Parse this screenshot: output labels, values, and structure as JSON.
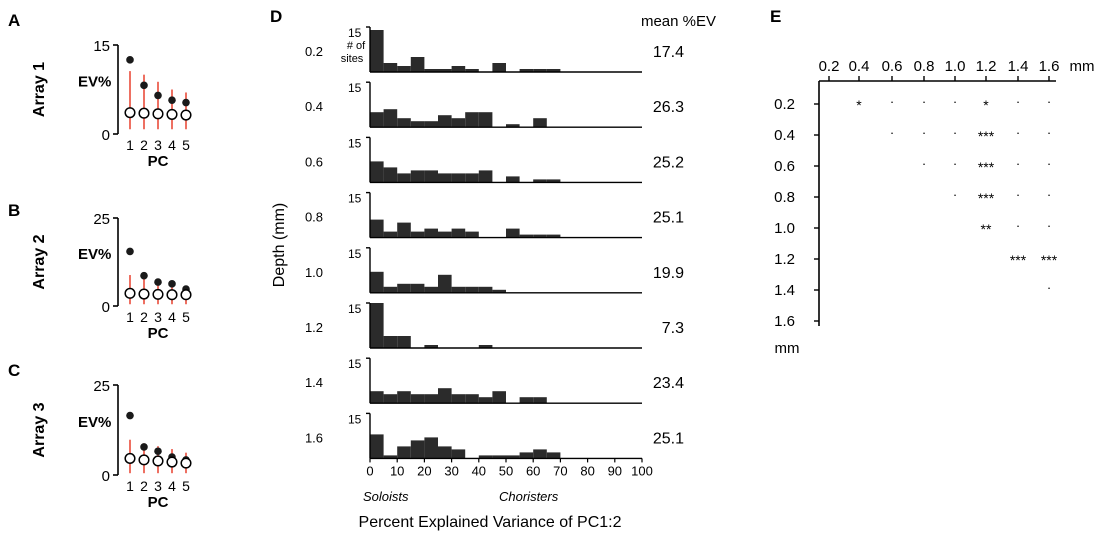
{
  "chart_data": [
    {
      "type": "scatter",
      "panel": "A",
      "ylabel_side": "Array 1",
      "ylabel": "EV%",
      "xlabel": "PC",
      "ylim": [
        0,
        15
      ],
      "yticks": [
        "0",
        "15"
      ],
      "categories": [
        "1",
        "2",
        "3",
        "4",
        "5"
      ],
      "series": [
        {
          "name": "observed",
          "style": "filled",
          "values": [
            12.5,
            8.2,
            6.5,
            5.7,
            5.3
          ]
        },
        {
          "name": "shuffled",
          "style": "open",
          "values": [
            3.6,
            3.5,
            3.4,
            3.3,
            3.2
          ]
        }
      ],
      "error_bars": [
        [
          0.8,
          10.6
        ],
        [
          0.8,
          10.0
        ],
        [
          0.8,
          8.8
        ],
        [
          0.8,
          7.5
        ],
        [
          0.8,
          7.0
        ]
      ]
    },
    {
      "type": "scatter",
      "panel": "B",
      "ylabel_side": "Array 2",
      "ylabel": "EV%",
      "xlabel": "PC",
      "ylim": [
        0,
        25
      ],
      "yticks": [
        "0",
        "25"
      ],
      "categories": [
        "1",
        "2",
        "3",
        "4",
        "5"
      ],
      "series": [
        {
          "name": "observed",
          "style": "filled",
          "values": [
            15.5,
            8.6,
            6.8,
            6.3,
            4.8
          ]
        },
        {
          "name": "shuffled",
          "style": "open",
          "values": [
            3.6,
            3.4,
            3.3,
            3.2,
            3.2
          ]
        }
      ],
      "error_bars": [
        [
          0.5,
          8.8
        ],
        [
          0.5,
          8.0
        ],
        [
          0.5,
          7.2
        ],
        [
          0.5,
          6.2
        ],
        [
          0.5,
          5.6
        ]
      ]
    },
    {
      "type": "scatter",
      "panel": "C",
      "ylabel_side": "Array 3",
      "ylabel": "EV%",
      "xlabel": "PC",
      "ylim": [
        0,
        25
      ],
      "yticks": [
        "0",
        "25"
      ],
      "categories": [
        "1",
        "2",
        "3",
        "4",
        "5"
      ],
      "series": [
        {
          "name": "observed",
          "style": "filled",
          "values": [
            16.5,
            7.8,
            6.6,
            5.0,
            4.2
          ]
        },
        {
          "name": "shuffled",
          "style": "open",
          "values": [
            4.6,
            4.2,
            3.9,
            3.6,
            3.3
          ]
        }
      ],
      "error_bars": [
        [
          0.5,
          9.8
        ],
        [
          0.5,
          8.8
        ],
        [
          0.5,
          8.0
        ],
        [
          0.5,
          7.2
        ],
        [
          0.5,
          6.2
        ]
      ]
    },
    {
      "type": "bar",
      "panel": "D",
      "title_right": "mean %EV",
      "xlabel": "Percent Explained Variance of PC1:2",
      "ylabel": "Depth (mm)",
      "count_label": [
        "# of",
        "sites"
      ],
      "bin_width": 5,
      "xlim": [
        0,
        100
      ],
      "ylim": [
        0,
        15
      ],
      "ytick_top": "15",
      "xticks": [
        "0",
        "10",
        "20",
        "30",
        "40",
        "50",
        "60",
        "70",
        "80",
        "90",
        "100"
      ],
      "annotations": [
        "Soloists",
        "Choristers"
      ],
      "rows": [
        {
          "depth": "0.2",
          "mean": "17.4",
          "counts": [
            14,
            3,
            2,
            5,
            1,
            1,
            2,
            1,
            0,
            3,
            0,
            1,
            1,
            1,
            0,
            0,
            0,
            0,
            0,
            0
          ]
        },
        {
          "depth": "0.4",
          "mean": "26.3",
          "counts": [
            5,
            6,
            3,
            2,
            2,
            4,
            3,
            5,
            5,
            0,
            1,
            0,
            3,
            0,
            0,
            0,
            0,
            0,
            0,
            0
          ]
        },
        {
          "depth": "0.6",
          "mean": "25.2",
          "counts": [
            7,
            5,
            3,
            4,
            4,
            3,
            3,
            3,
            4,
            0,
            2,
            0,
            1,
            1,
            0,
            0,
            0,
            0,
            0,
            0
          ]
        },
        {
          "depth": "0.8",
          "mean": "25.1",
          "counts": [
            6,
            2,
            5,
            2,
            3,
            2,
            3,
            2,
            0,
            0,
            3,
            1,
            1,
            1,
            0,
            0,
            0,
            0,
            0,
            0
          ]
        },
        {
          "depth": "1.0",
          "mean": "19.9",
          "counts": [
            7,
            2,
            3,
            3,
            2,
            6,
            2,
            2,
            2,
            1,
            0,
            0,
            0,
            0,
            0,
            0,
            0,
            0,
            0,
            0
          ]
        },
        {
          "depth": "1.2",
          "mean": "7.3",
          "counts": [
            15,
            4,
            4,
            0,
            1,
            0,
            0,
            0,
            1,
            0,
            0,
            0,
            0,
            0,
            0,
            0,
            0,
            0,
            0,
            0
          ]
        },
        {
          "depth": "1.4",
          "mean": "23.4",
          "counts": [
            4,
            3,
            4,
            3,
            3,
            5,
            3,
            3,
            2,
            4,
            0,
            2,
            2,
            0,
            0,
            0,
            0,
            0,
            0,
            0
          ]
        },
        {
          "depth": "1.6",
          "mean": "25.1",
          "counts": [
            8,
            1,
            4,
            6,
            7,
            4,
            3,
            0,
            1,
            1,
            1,
            2,
            3,
            2,
            0,
            0,
            0,
            0,
            0,
            0
          ]
        }
      ]
    },
    {
      "type": "table",
      "panel": "E",
      "unit": "mm",
      "columns": [
        "0.2",
        "0.4",
        "0.6",
        "0.8",
        "1.0",
        "1.2",
        "1.4",
        "1.6"
      ],
      "rows": [
        "0.2",
        "0.4",
        "0.6",
        "0.8",
        "1.0",
        "1.2",
        "1.4",
        "1.6"
      ],
      "cells": [
        [
          "",
          "*",
          "·",
          "·",
          "·",
          "*",
          "·",
          "·"
        ],
        [
          "",
          "",
          "·",
          "·",
          "·",
          "***",
          "·",
          "·"
        ],
        [
          "",
          "",
          "",
          "·",
          "·",
          "***",
          "·",
          "·"
        ],
        [
          "",
          "",
          "",
          "",
          "·",
          "***",
          "·",
          "·"
        ],
        [
          "",
          "",
          "",
          "",
          "",
          "**",
          "·",
          "·"
        ],
        [
          "",
          "",
          "",
          "",
          "",
          "",
          "***",
          "***"
        ],
        [
          "",
          "",
          "",
          "",
          "",
          "",
          "",
          "·"
        ],
        [
          "",
          "",
          "",
          "",
          "",
          "",
          "",
          ""
        ]
      ]
    }
  ]
}
